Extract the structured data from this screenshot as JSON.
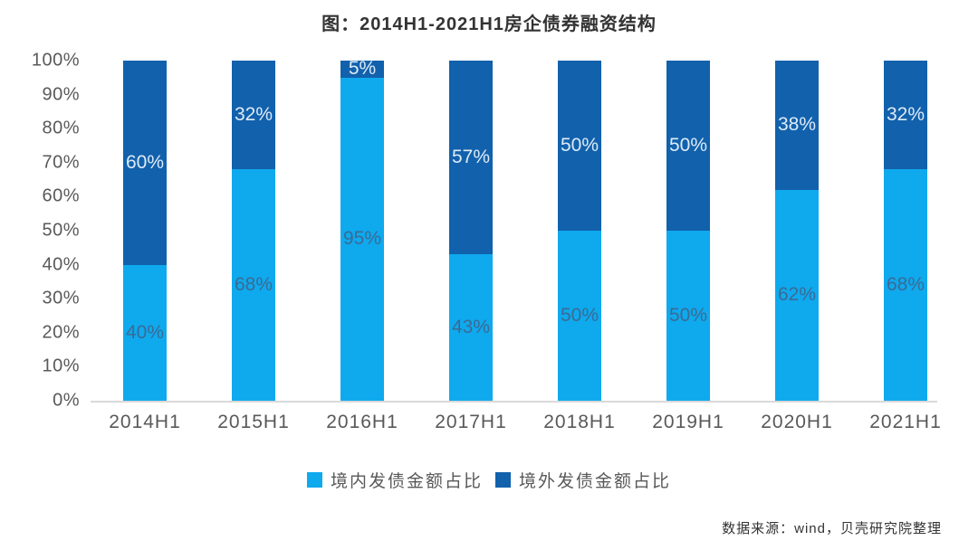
{
  "chart": {
    "title": "图：2014H1-2021H1房企债券融资结构",
    "source": "数据来源：wind，贝壳研究院整理"
  },
  "legend": {
    "items": [
      {
        "name": "domestic",
        "label": "境内发债金额占比",
        "color": "#0FA9EE"
      },
      {
        "name": "overseas",
        "label": "境外发债金额占比",
        "color": "#1261AC"
      }
    ]
  },
  "chart_data": {
    "type": "bar",
    "stacked": true,
    "title": "图：2014H1-2021H1房企债券融资结构",
    "categories": [
      "2014H1",
      "2015H1",
      "2016H1",
      "2017H1",
      "2018H1",
      "2019H1",
      "2020H1",
      "2021H1"
    ],
    "series": [
      {
        "name": "境内发债金额占比",
        "color": "#0FA9EE",
        "label_color": "#3A6B94",
        "values": [
          40,
          68,
          95,
          43,
          50,
          50,
          62,
          68
        ]
      },
      {
        "name": "境外发债金额占比",
        "color": "#1261AC",
        "label_color": "#DDEBF8",
        "values": [
          60,
          32,
          5,
          57,
          50,
          50,
          38,
          32
        ]
      }
    ],
    "value_suffix": "%",
    "y_ticks": [
      "100%",
      "90%",
      "80%",
      "70%",
      "60%",
      "50%",
      "40%",
      "30%",
      "20%",
      "10%",
      "0%"
    ],
    "ylim": [
      0,
      100
    ],
    "grid": false,
    "legend_position": "bottom",
    "source": "数据来源：wind，贝壳研究院整理"
  }
}
